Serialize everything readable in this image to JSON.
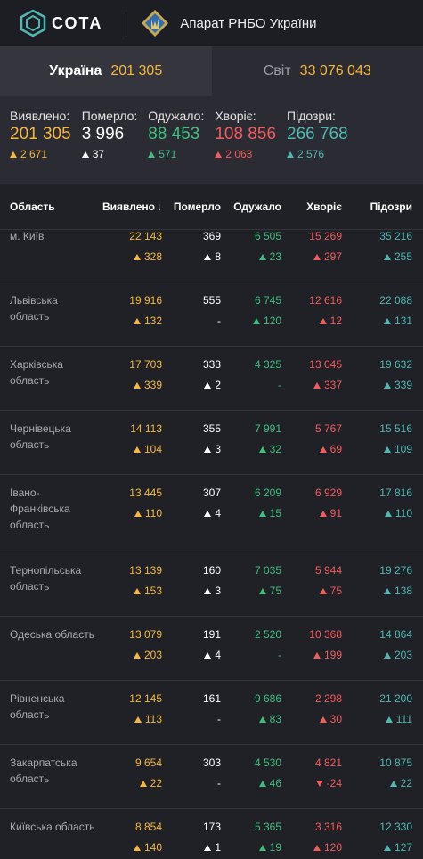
{
  "header": {
    "logo_text": "СОТА",
    "org_name": "Апарат РНБО України"
  },
  "totals": {
    "ukraine": {
      "label": "Україна",
      "value": "201 305"
    },
    "world": {
      "label": "Світ",
      "value": "33 076 043"
    }
  },
  "summary": [
    {
      "label": "Виявлено:",
      "value": "201 305",
      "delta": "2 671",
      "color": "yellow"
    },
    {
      "label": "Померло:",
      "value": "3 996",
      "delta": "37",
      "color": "white"
    },
    {
      "label": "Одужало:",
      "value": "88 453",
      "delta": "571",
      "color": "green"
    },
    {
      "label": "Хворіє:",
      "value": "108 856",
      "delta": "2 063",
      "color": "red"
    },
    {
      "label": "Підозри:",
      "value": "266 768",
      "delta": "2 576",
      "color": "teal"
    }
  ],
  "table": {
    "headers": {
      "region": "Область",
      "detected": "Виявлено",
      "died": "Померло",
      "recovered": "Одужало",
      "sick": "Хворіє",
      "suspected": "Підозри"
    },
    "sort_indicator": "↓",
    "rows": [
      {
        "region": "м. Київ",
        "detected": "22 143",
        "detected_d": "328",
        "died": "369",
        "died_d": "8",
        "recovered": "6 505",
        "recovered_d": "23",
        "sick": "15 269",
        "sick_d": "297",
        "sick_dir": "up",
        "suspected": "35 216",
        "suspected_d": "255"
      },
      {
        "region": "Львівська область",
        "detected": "19 916",
        "detected_d": "132",
        "died": "555",
        "died_d": "-",
        "recovered": "6 745",
        "recovered_d": "120",
        "sick": "12 616",
        "sick_d": "12",
        "sick_dir": "up",
        "suspected": "22 088",
        "suspected_d": "131"
      },
      {
        "region": "Харківська область",
        "detected": "17 703",
        "detected_d": "339",
        "died": "333",
        "died_d": "2",
        "recovered": "4 325",
        "recovered_d": "-",
        "sick": "13 045",
        "sick_d": "337",
        "sick_dir": "up",
        "suspected": "19 632",
        "suspected_d": "339"
      },
      {
        "region": "Чернівецька область",
        "detected": "14 113",
        "detected_d": "104",
        "died": "355",
        "died_d": "3",
        "recovered": "7 991",
        "recovered_d": "32",
        "sick": "5 767",
        "sick_d": "69",
        "sick_dir": "up",
        "suspected": "15 516",
        "suspected_d": "109"
      },
      {
        "region": "Івано-Франківська область",
        "detected": "13 445",
        "detected_d": "110",
        "died": "307",
        "died_d": "4",
        "recovered": "6 209",
        "recovered_d": "15",
        "sick": "6 929",
        "sick_d": "91",
        "sick_dir": "up",
        "suspected": "17 816",
        "suspected_d": "110"
      },
      {
        "region": "Тернопільська область",
        "detected": "13 139",
        "detected_d": "153",
        "died": "160",
        "died_d": "3",
        "recovered": "7 035",
        "recovered_d": "75",
        "sick": "5 944",
        "sick_d": "75",
        "sick_dir": "up",
        "suspected": "19 276",
        "suspected_d": "138"
      },
      {
        "region": "Одеська область",
        "detected": "13 079",
        "detected_d": "203",
        "died": "191",
        "died_d": "4",
        "recovered": "2 520",
        "recovered_d": "-",
        "sick": "10 368",
        "sick_d": "199",
        "sick_dir": "up",
        "suspected": "14 864",
        "suspected_d": "203"
      },
      {
        "region": "Рівненська область",
        "detected": "12 145",
        "detected_d": "113",
        "died": "161",
        "died_d": "-",
        "recovered": "9 686",
        "recovered_d": "83",
        "sick": "2 298",
        "sick_d": "30",
        "sick_dir": "up",
        "suspected": "21 200",
        "suspected_d": "111"
      },
      {
        "region": "Закарпатська область",
        "detected": "9 654",
        "detected_d": "22",
        "died": "303",
        "died_d": "-",
        "recovered": "4 530",
        "recovered_d": "46",
        "sick": "4 821",
        "sick_d": "-24",
        "sick_dir": "down",
        "suspected": "10 875",
        "suspected_d": "22"
      },
      {
        "region": "Київська область",
        "detected": "8 854",
        "detected_d": "140",
        "died": "173",
        "died_d": "1",
        "recovered": "5 365",
        "recovered_d": "19",
        "sick": "3 316",
        "sick_d": "120",
        "sick_dir": "up",
        "suspected": "12 330",
        "suspected_d": "127"
      }
    ]
  },
  "colors": {
    "yellow": "#f6b73c",
    "white": "#ffffff",
    "green": "#3fbf7f",
    "red": "#f25c5c",
    "teal": "#4fb8b0"
  }
}
